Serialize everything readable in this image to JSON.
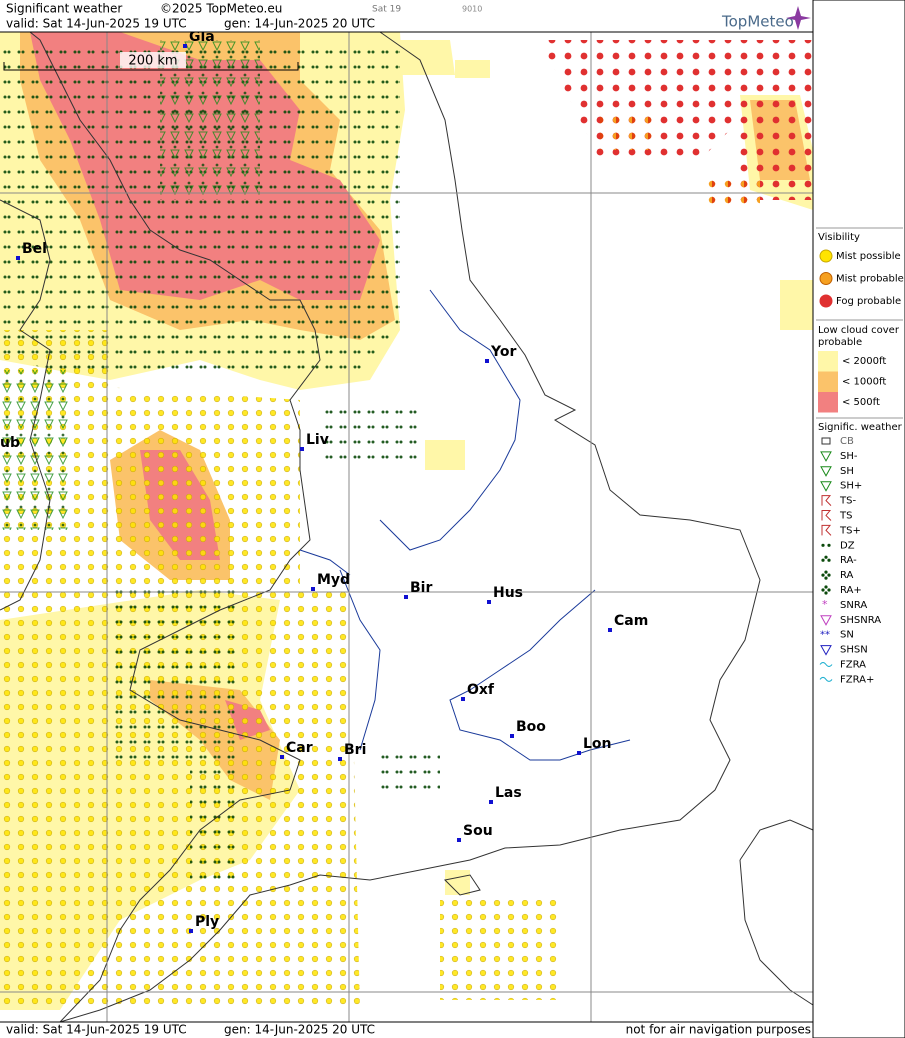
{
  "header": {
    "title": "Significant weather",
    "copyright": "©2025 TopMeteo.eu",
    "run": "Sat 19",
    "code": "9010",
    "valid": "valid:  Sat  14-Jun-2025  19 UTC",
    "gen": "gen: 14-Jun-2025 20 UTC",
    "logo": "TopMeteo"
  },
  "map": {
    "scale": "200 km",
    "cities": [
      "Gla",
      "Bel",
      "Yor",
      "Liv",
      "ub",
      "Myd",
      "Bir",
      "Hus",
      "Cam",
      "Oxf",
      "Boo",
      "Lon",
      "Car",
      "Bri",
      "Las",
      "Sou",
      "Ply"
    ]
  },
  "legend": {
    "visibility": {
      "title": "Visibility",
      "items": [
        "Mist possible",
        "Mist probable",
        "Fog probable"
      ]
    },
    "low_cloud": {
      "title": "Low cloud cover probable",
      "items": [
        "< 2000ft",
        "< 1000ft",
        "<  500ft"
      ]
    },
    "weather": {
      "title": "Signific. weather",
      "items": [
        "CB",
        "SH-",
        "SH",
        "SH+",
        "TS-",
        "TS",
        "TS+",
        "DZ",
        "RA-",
        "RA",
        "RA+",
        "SNRA",
        "SHSNRA",
        "SN",
        "SHSN",
        "FZRA",
        "FZRA+"
      ]
    }
  },
  "footer": {
    "valid": "valid:  Sat  14-Jun-2025  19 UTC",
    "gen": "gen: 14-Jun-2025 20 UTC",
    "note": "not for air navigation purposes"
  }
}
